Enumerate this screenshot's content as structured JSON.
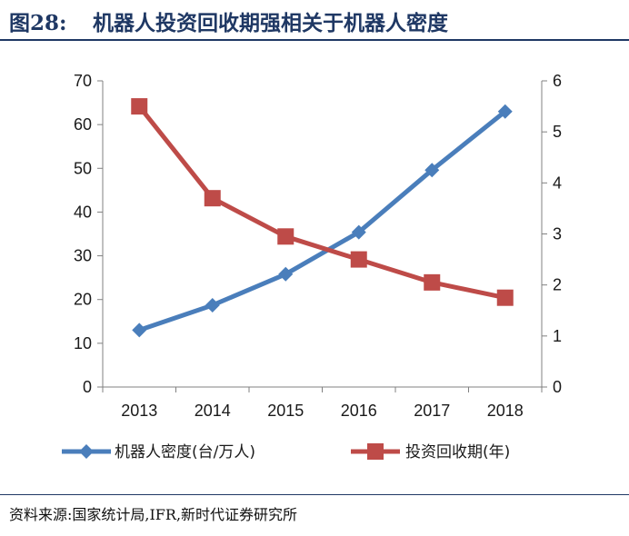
{
  "header": {
    "figure_number": "图28:",
    "title": "机器人投资回收期强相关于机器人密度"
  },
  "footer": {
    "source": "资料来源:国家统计局,IFR,新时代证券研究所"
  },
  "chart_data": {
    "type": "line",
    "title": "机器人投资回收期强相关于机器人密度",
    "categories": [
      "2013",
      "2014",
      "2015",
      "2016",
      "2017",
      "2018"
    ],
    "series": [
      {
        "name": "机器人密度(台/万人)",
        "axis": "left",
        "marker": "diamond",
        "color": "#4a7ebb",
        "values": [
          13,
          18.7,
          25.8,
          35.4,
          49.6,
          63
        ]
      },
      {
        "name": "投资回收期(年)",
        "axis": "right",
        "marker": "square",
        "color": "#be4b48",
        "values": [
          5.5,
          3.7,
          2.95,
          2.5,
          2.05,
          1.75
        ]
      }
    ],
    "y_left": {
      "min": 0,
      "max": 70,
      "step": 10,
      "ticks": [
        "0",
        "10",
        "20",
        "30",
        "40",
        "50",
        "60",
        "70"
      ]
    },
    "y_right": {
      "min": 0,
      "max": 6,
      "step": 1,
      "ticks": [
        "0",
        "1",
        "2",
        "3",
        "4",
        "5",
        "6"
      ]
    },
    "grid": false,
    "legend": "bottom"
  }
}
